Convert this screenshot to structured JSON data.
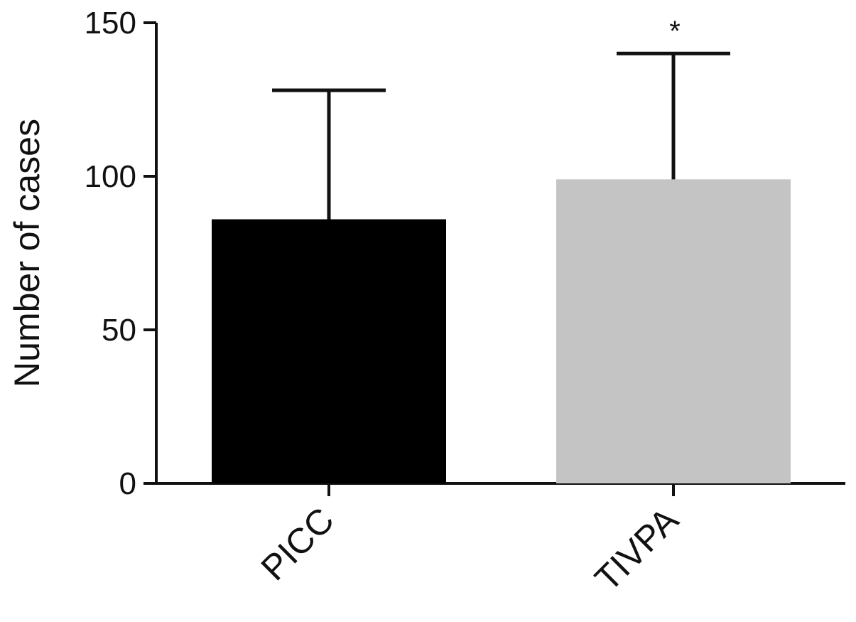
{
  "chart_data": {
    "type": "bar",
    "categories": [
      "PICC",
      "TIVPA"
    ],
    "values": [
      86,
      99
    ],
    "error_upper": [
      128,
      140
    ],
    "bar_colors": [
      "#000000",
      "#c4c4c4"
    ],
    "annotations": [
      "",
      "*"
    ],
    "title": "",
    "xlabel": "",
    "ylabel": "Number of cases",
    "ylim": [
      0,
      150
    ],
    "yticks": [
      0,
      50,
      100,
      150
    ],
    "grid": false,
    "legend": "none"
  }
}
